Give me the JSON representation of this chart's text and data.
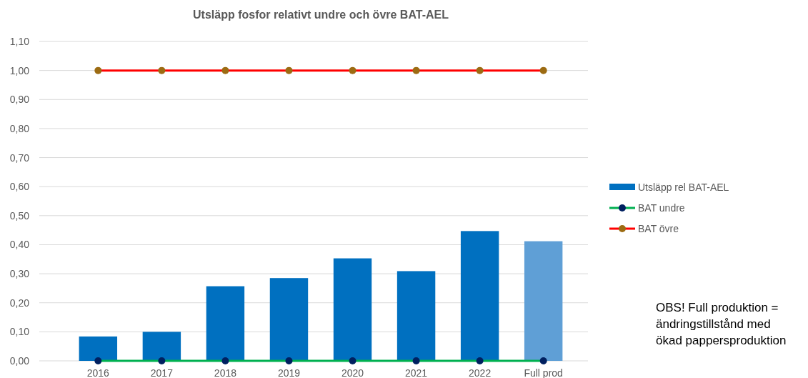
{
  "chart_data": {
    "type": "bar",
    "title": "Utsläpp fosfor relativt undre och övre BAT-AEL",
    "categories": [
      "2016",
      "2017",
      "2018",
      "2019",
      "2020",
      "2021",
      "2022",
      "Full prod"
    ],
    "series": [
      {
        "name": "Utsläpp rel BAT-AEL",
        "color": "#0070c0",
        "colors": [
          "#0070c0",
          "#0070c0",
          "#0070c0",
          "#0070c0",
          "#0070c0",
          "#0070c0",
          "#0070c0",
          "#5f9fd6"
        ],
        "values": [
          0.084,
          0.1,
          0.257,
          0.285,
          0.353,
          0.309,
          0.447,
          0.412
        ]
      },
      {
        "name": "BAT undre",
        "type": "line",
        "color": "#00b050",
        "colors": [
          "#002060",
          "#002060",
          "#002060",
          "#002060",
          "#002060",
          "#002060",
          "#002060",
          "#002060"
        ],
        "marker": "circle",
        "values": [
          0,
          0,
          0,
          0,
          0,
          0,
          0,
          0
        ]
      },
      {
        "name": "BAT övre",
        "type": "line",
        "color": "#ff0000",
        "colors": [
          "#9c6b12",
          "#9c6b12",
          "#9c6b12",
          "#9c6b12",
          "#9c6b12",
          "#9c6b12",
          "#9c6b12",
          "#9c6b12"
        ],
        "marker": "circle",
        "values": [
          1,
          1,
          1,
          1,
          1,
          1,
          1,
          1
        ]
      }
    ],
    "ylim": [
      0,
      1.1
    ],
    "yticks": [
      {
        "value": 0,
        "label": "0,00"
      },
      {
        "value": 0.1,
        "label": "0,10"
      },
      {
        "value": 0.2,
        "label": "0,20"
      },
      {
        "value": 0.3,
        "label": "0,30"
      },
      {
        "value": 0.4,
        "label": "0,40"
      },
      {
        "value": 0.5,
        "label": "0,50"
      },
      {
        "value": 0.6,
        "label": "0,60"
      },
      {
        "value": 0.7,
        "label": "0,70"
      },
      {
        "value": 0.8,
        "label": "0,80"
      },
      {
        "value": 0.9,
        "label": "0,90"
      },
      {
        "value": 1.0,
        "label": "1,00"
      },
      {
        "value": 1.1,
        "label": "1,10"
      }
    ],
    "grid": "y",
    "legend": "right",
    "annotations": [
      "OBS! Full produktion = ändringstillstånd med ökad pappersproduktion"
    ]
  }
}
